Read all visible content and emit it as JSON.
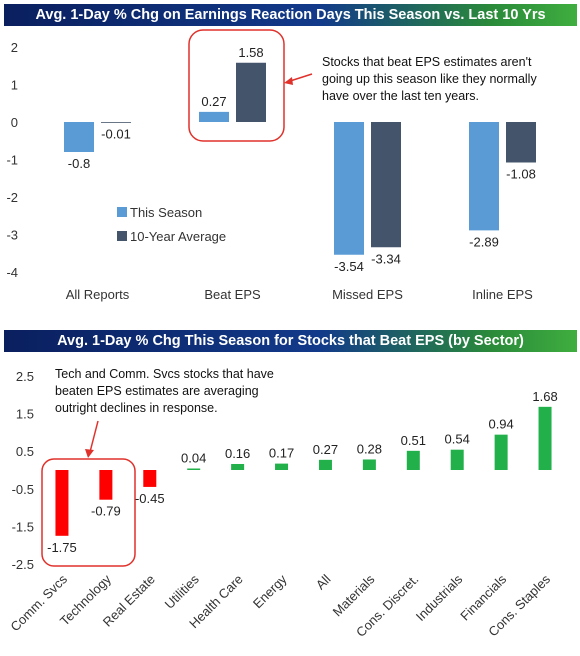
{
  "chart_data": [
    {
      "type": "bar",
      "title": "Avg. 1-Day % Chg on Earnings Reaction Days This Season vs. Last 10 Yrs",
      "categories": [
        "All Reports",
        "Beat EPS",
        "Missed EPS",
        "Inline EPS"
      ],
      "series": [
        {
          "name": "This Season",
          "values": [
            -0.8,
            0.27,
            -3.54,
            -2.89
          ]
        },
        {
          "name": "10-Year Average",
          "values": [
            -0.01,
            1.58,
            -3.34,
            -1.08
          ]
        }
      ],
      "data_labels": [
        [
          "-0.8",
          "0.27",
          "-3.54",
          "-2.89"
        ],
        [
          "-0.01",
          "1.58",
          "-3.34",
          "-1.08"
        ]
      ],
      "ylim": [
        -4,
        2
      ],
      "yticks": [
        "2",
        "1",
        "0",
        "-1",
        "-2",
        "-3",
        "-4"
      ],
      "legend_position": "center-left",
      "grid": false,
      "colors": {
        "This Season": "#5b9bd5",
        "10-Year Average": "#44546a",
        "highlight": "#e0312b"
      },
      "annotation": "Stocks that beat EPS estimates aren't going up this season like they normally have over the last ten years.",
      "annotation_lines": [
        "Stocks that beat EPS estimates aren't",
        "going up this season like they normally",
        "have over the last ten years."
      ]
    },
    {
      "type": "bar",
      "title": "Avg. 1-Day % Chg This Season for Stocks that Beat EPS (by Sector)",
      "categories": [
        "Comm. Svcs",
        "Technology",
        "Real Estate",
        "Utilities",
        "Health Care",
        "Energy",
        "All",
        "Materials",
        "Cons. Discret.",
        "Industrials",
        "Financials",
        "Cons. Staples"
      ],
      "values": [
        -1.75,
        -0.79,
        -0.45,
        0.04,
        0.16,
        0.17,
        0.27,
        0.28,
        0.51,
        0.54,
        0.94,
        1.68
      ],
      "data_labels": [
        "-1.75",
        "-0.79",
        "-0.45",
        "0.04",
        "0.16",
        "0.17",
        "0.27",
        "0.28",
        "0.51",
        "0.54",
        "0.94",
        "1.68"
      ],
      "ylim": [
        -2.5,
        2.5
      ],
      "yticks": [
        "2.5",
        "1.5",
        "0.5",
        "-0.5",
        "-1.5",
        "-2.5"
      ],
      "grid": false,
      "colors": {
        "positive": "#22b04b",
        "negative": "#ff0000",
        "highlight": "#e0312b"
      },
      "annotation": "Tech and Comm. Svcs stocks that have beaten EPS estimates are averaging outright declines in response.",
      "annotation_lines": [
        "Tech and Comm. Svcs stocks that have",
        "beaten EPS estimates are averaging",
        "outright declines in response."
      ]
    }
  ]
}
